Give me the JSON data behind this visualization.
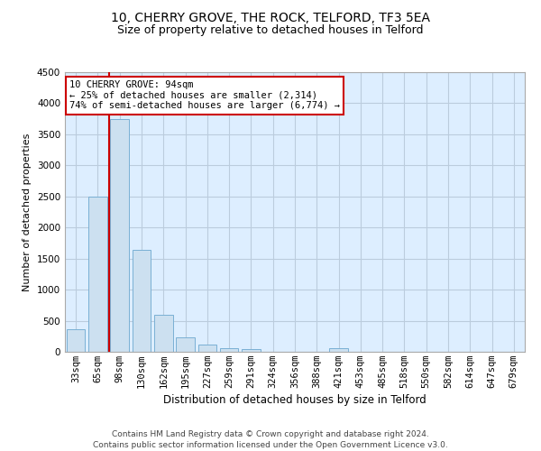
{
  "title": "10, CHERRY GROVE, THE ROCK, TELFORD, TF3 5EA",
  "subtitle": "Size of property relative to detached houses in Telford",
  "xlabel": "Distribution of detached houses by size in Telford",
  "ylabel": "Number of detached properties",
  "categories": [
    "33sqm",
    "65sqm",
    "98sqm",
    "130sqm",
    "162sqm",
    "195sqm",
    "227sqm",
    "259sqm",
    "291sqm",
    "324sqm",
    "356sqm",
    "388sqm",
    "421sqm",
    "453sqm",
    "485sqm",
    "518sqm",
    "550sqm",
    "582sqm",
    "614sqm",
    "647sqm",
    "679sqm"
  ],
  "values": [
    370,
    2500,
    3750,
    1640,
    590,
    230,
    110,
    65,
    40,
    0,
    0,
    0,
    55,
    0,
    0,
    0,
    0,
    0,
    0,
    0,
    0
  ],
  "bar_color": "#cce0f0",
  "bar_edge_color": "#7ab0d4",
  "highlight_bar_index": 2,
  "highlight_color": "#cc0000",
  "annotation_line1": "10 CHERRY GROVE: 94sqm",
  "annotation_line2": "← 25% of detached houses are smaller (2,314)",
  "annotation_line3": "74% of semi-detached houses are larger (6,774) →",
  "annotation_box_color": "#ffffff",
  "annotation_box_edge": "#cc0000",
  "ylim": [
    0,
    4500
  ],
  "yticks": [
    0,
    500,
    1000,
    1500,
    2000,
    2500,
    3000,
    3500,
    4000,
    4500
  ],
  "grid_color": "#bbccdd",
  "background_color": "#ddeeff",
  "footer_line1": "Contains HM Land Registry data © Crown copyright and database right 2024.",
  "footer_line2": "Contains public sector information licensed under the Open Government Licence v3.0.",
  "title_fontsize": 10,
  "subtitle_fontsize": 9,
  "xlabel_fontsize": 8.5,
  "ylabel_fontsize": 8,
  "tick_fontsize": 7.5,
  "footer_fontsize": 6.5
}
